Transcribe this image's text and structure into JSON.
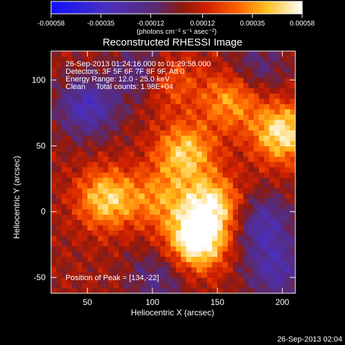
{
  "chart_data": {
    "type": "heatmap",
    "title": "Reconstructed RHESSI Image",
    "xlabel": "Heliocentric X (arcsec)",
    "ylabel": "Heliocentric Y (arcsec)",
    "xlim": [
      22,
      210
    ],
    "ylim": [
      -62,
      122
    ],
    "x_ticks": [
      "50",
      "100",
      "150",
      "200"
    ],
    "x_tick_values": [
      50,
      100,
      150,
      200
    ],
    "y_ticks": [
      "-50",
      "0",
      "50",
      "100"
    ],
    "y_tick_values": [
      -50,
      0,
      50,
      100
    ],
    "colorbar": {
      "ticks": [
        "-0.00058",
        "-0.00035",
        "-0.00012",
        "0.00012",
        "0.00035",
        "0.00058"
      ],
      "tick_values": [
        -0.00058,
        -0.00035,
        -0.00012,
        0.00012,
        0.00035,
        0.00058
      ],
      "range": [
        -0.00058,
        0.00058
      ],
      "unit_label": "(photons cm⁻² s⁻¹ asec⁻²)",
      "colors": [
        "#1a1aff",
        "#5a2a8a",
        "#7a2a55",
        "#c01a00",
        "#ff7000",
        "#ffff40",
        "#ffffff"
      ]
    },
    "annotations": {
      "time": "26-Sep-2013 01:24:16.000 to 01:29:58.000",
      "detectors": "Detectors: 3F 5F 6F 7F 8F 9F, Att 0",
      "energy": "Energy Range: 12.0 - 25.0 keV",
      "clean": "Clean     Total counts: 1.98E+04",
      "peak": "Position of Peak = [134,-22]"
    },
    "peak": {
      "x": 134,
      "y": -22
    },
    "bright_sources": [
      {
        "x": 134,
        "y": -22,
        "value": 0.00058
      },
      {
        "x": 145,
        "y": 5,
        "value": 0.00045
      },
      {
        "x": 125,
        "y": 45,
        "value": 0.0004
      },
      {
        "x": 200,
        "y": 60,
        "value": 0.00048
      },
      {
        "x": 65,
        "y": 10,
        "value": 0.00042
      },
      {
        "x": 160,
        "y": 85,
        "value": 0.00032
      },
      {
        "x": 110,
        "y": 100,
        "value": 0.0003
      },
      {
        "x": 105,
        "y": 10,
        "value": 0.00025
      }
    ],
    "dark_regions": [
      {
        "x": 50,
        "y": 80,
        "value": -0.00035
      },
      {
        "x": 95,
        "y": 105,
        "value": -0.0003
      },
      {
        "x": 185,
        "y": -10,
        "value": -0.0003
      },
      {
        "x": 195,
        "y": -45,
        "value": -0.00028
      },
      {
        "x": 105,
        "y": -50,
        "value": -0.0002
      },
      {
        "x": 180,
        "y": 110,
        "value": -0.00018
      }
    ],
    "grid": false
  },
  "footer": {
    "date": "26-Sep-2013 02:04"
  }
}
